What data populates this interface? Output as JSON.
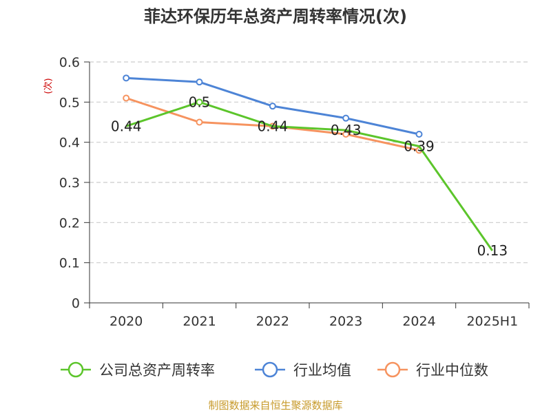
{
  "chart_data": {
    "type": "line",
    "title": "菲达环保历年总资产周转率情况(次)",
    "ylabel": "(次)",
    "xlabel": "",
    "categories": [
      "2020",
      "2021",
      "2022",
      "2023",
      "2024",
      "2025H1"
    ],
    "ylim": [
      0,
      0.6
    ],
    "yticks": [
      "0",
      "0.1",
      "0.2",
      "0.3",
      "0.4",
      "0.5",
      "0.6"
    ],
    "grid": true,
    "legend_position": "bottom",
    "series": [
      {
        "name": "公司总资产周转率",
        "color": "#5cc52b",
        "values": [
          0.44,
          0.5,
          0.44,
          0.43,
          0.39,
          0.13
        ],
        "labels": [
          "0.44",
          "0.5",
          "0.44",
          "0.43",
          "0.39",
          "0.13"
        ],
        "show_markers": [
          false,
          true,
          false,
          false,
          false,
          false
        ]
      },
      {
        "name": "行业均值",
        "color": "#4d84d6",
        "values": [
          0.56,
          0.55,
          0.49,
          0.46,
          0.42,
          null
        ]
      },
      {
        "name": "行业中位数",
        "color": "#f6935f",
        "values": [
          0.51,
          0.45,
          0.44,
          0.42,
          0.38,
          null
        ]
      }
    ],
    "source": "制图数据来自恒生聚源数据库"
  }
}
